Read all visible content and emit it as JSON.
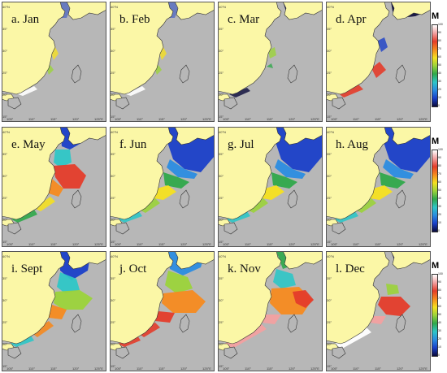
{
  "panels": [
    {
      "label": "a. Jan",
      "scheme": "sparse"
    },
    {
      "label": "b. Feb",
      "scheme": "sparse"
    },
    {
      "label": "c. Mar",
      "scheme": "sparse_dark"
    },
    {
      "label": "d. Apr",
      "scheme": "apr"
    },
    {
      "label": "e. May",
      "scheme": "may"
    },
    {
      "label": "f. Jun",
      "scheme": "summer"
    },
    {
      "label": "g. Jul",
      "scheme": "summer"
    },
    {
      "label": "h. Aug",
      "scheme": "summer"
    },
    {
      "label": "i. Sept",
      "scheme": "sept"
    },
    {
      "label": "j. Oct",
      "scheme": "oct"
    },
    {
      "label": "k. Nov",
      "scheme": "nov"
    },
    {
      "label": "l. Dec",
      "scheme": "dec"
    }
  ],
  "axis": {
    "y_ticks": [
      "40°N",
      "35°",
      "30°",
      "25°",
      "20°",
      "15°"
    ],
    "x_ticks": [
      "105°",
      "110°",
      "115°",
      "120°",
      "125°E"
    ]
  },
  "colorbar": {
    "title": "M",
    "labels": [
      "100",
      "90",
      "80",
      "70",
      "60",
      "50",
      "40",
      "30",
      "20",
      "10",
      "0"
    ],
    "colors": [
      "#ffffff",
      "#f2a0a0",
      "#e43c2a",
      "#f58a1f",
      "#f5e020",
      "#9bd33a",
      "#2fa84a",
      "#2ec6c6",
      "#2b8ce0",
      "#1a3fc8",
      "#0a0a3a"
    ]
  },
  "colors": {
    "land": "#fbf7a6",
    "sea": "#b7b7b7",
    "border": "#555555"
  }
}
